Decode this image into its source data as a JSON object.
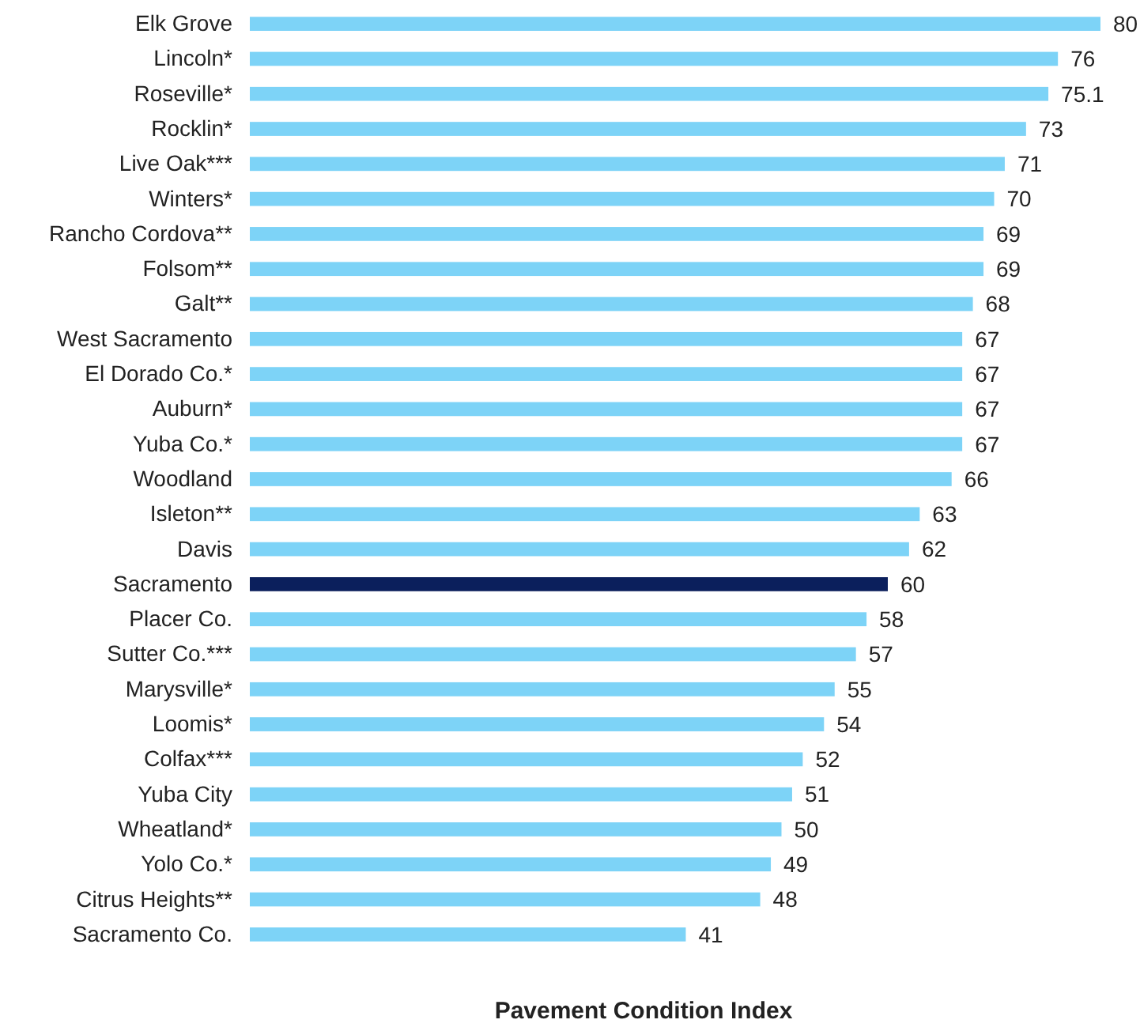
{
  "chart_data": {
    "type": "bar",
    "orientation": "horizontal",
    "xlabel": "Pavement Condition Index",
    "categories": [
      "Elk Grove",
      "Lincoln*",
      "Roseville*",
      "Rocklin*",
      "Live Oak***",
      "Winters*",
      "Rancho Cordova**",
      "Folsom**",
      "Galt**",
      "West Sacramento",
      "El Dorado Co.*",
      "Auburn*",
      "Yuba Co.*",
      "Woodland",
      "Isleton**",
      "Davis",
      "Sacramento",
      "Placer Co.",
      "Sutter Co.***",
      "Marysville*",
      "Loomis*",
      "Colfax***",
      "Yuba City",
      "Wheatland*",
      "Yolo Co.*",
      "Citrus Heights**",
      "Sacramento Co."
    ],
    "values": [
      80,
      76,
      75.1,
      73,
      71,
      70,
      69,
      69,
      68,
      67,
      67,
      67,
      67,
      66,
      63,
      62,
      60,
      58,
      57,
      55,
      54,
      52,
      51,
      50,
      49,
      48,
      41
    ],
    "colors": [
      "#7dd3f7",
      "#7dd3f7",
      "#7dd3f7",
      "#7dd3f7",
      "#7dd3f7",
      "#7dd3f7",
      "#7dd3f7",
      "#7dd3f7",
      "#7dd3f7",
      "#7dd3f7",
      "#7dd3f7",
      "#7dd3f7",
      "#7dd3f7",
      "#7dd3f7",
      "#7dd3f7",
      "#7dd3f7",
      "#0b1f5c",
      "#7dd3f7",
      "#7dd3f7",
      "#7dd3f7",
      "#7dd3f7",
      "#7dd3f7",
      "#7dd3f7",
      "#7dd3f7",
      "#7dd3f7",
      "#7dd3f7",
      "#7dd3f7"
    ],
    "xlim": [
      0,
      80
    ],
    "tick_labels": "y",
    "data_labels": true
  }
}
